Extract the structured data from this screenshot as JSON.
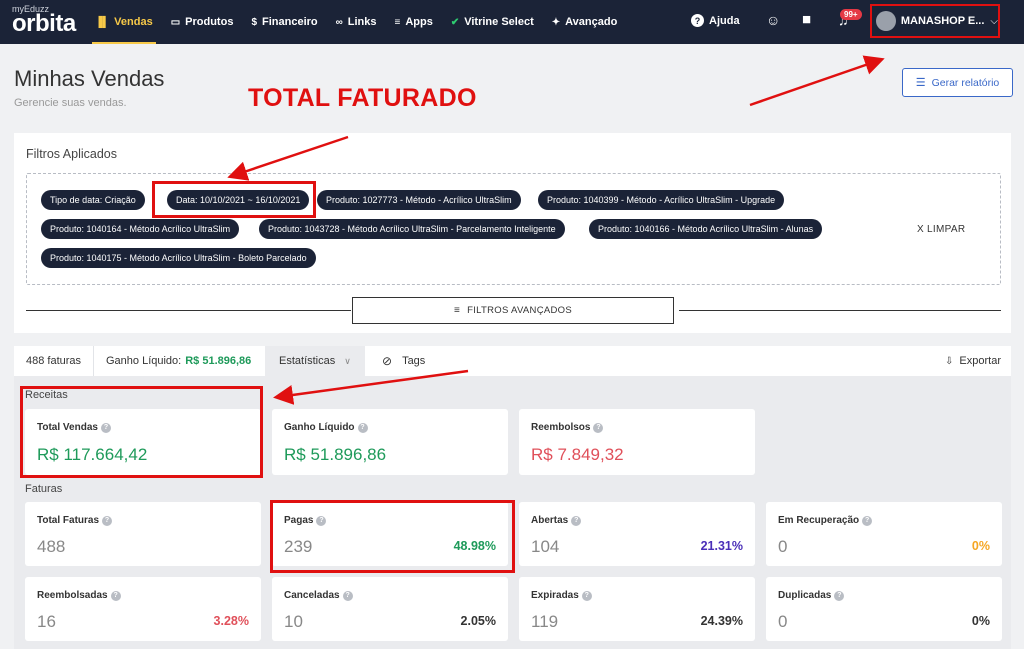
{
  "brand": {
    "small": "myEduzz",
    "big": "orbita"
  },
  "nav": {
    "items": [
      {
        "label": "Vendas",
        "icon": "bar-chart-icon",
        "active": true
      },
      {
        "label": "Produtos",
        "icon": "card-icon"
      },
      {
        "label": "Financeiro",
        "icon": "dollar-icon"
      },
      {
        "label": "Links",
        "icon": "link-icon"
      },
      {
        "label": "Apps",
        "icon": "grid-icon"
      },
      {
        "label": "Vitrine Select",
        "icon": "check-badge-icon"
      },
      {
        "label": "Avançado",
        "icon": "puzzle-icon"
      }
    ],
    "help_label": "Ajuda",
    "notifications_badge": "99+",
    "account_name": "MANASHOP E..."
  },
  "header": {
    "title": "Minhas Vendas",
    "subtitle": "Gerencie suas vendas.",
    "report_button": "Gerar relatório"
  },
  "annotation": {
    "text": "TOTAL FATURADO",
    "color": "#e01010"
  },
  "filters": {
    "title": "Filtros Aplicados",
    "chips": [
      "Tipo de data: Criação",
      "Data: 10/10/2021 ~ 16/10/2021",
      "Produto: 1027773 - Método - Acrílico UltraSlim",
      "Produto: 1040399 - Método - Acrílico UltraSlim - Upgrade",
      "Produto: 1040164 - Método Acrílico UltraSlim",
      "Produto: 1043728 - Método Acrílico UltraSlim - Parcelamento Inteligente",
      "Produto: 1040166 - Método Acrílico UltraSlim - Alunas",
      "Produto: 1040175 - Método Acrílico UltraSlim - Boleto Parcelado"
    ],
    "clear_label": "X LIMPAR",
    "advanced_label": "FILTROS AVANÇADOS"
  },
  "tabs": {
    "invoices": "488 faturas",
    "net_label": "Ganho Líquido:",
    "net_value": "R$ 51.896,86",
    "stats": "Estatísticas",
    "tags": "Tags",
    "export": "Exportar"
  },
  "revenue": {
    "label": "Receitas",
    "cards": [
      {
        "title": "Total Vendas",
        "value": "R$ 117.664,42"
      },
      {
        "title": "Ganho Líquido",
        "value": "R$ 51.896,86"
      },
      {
        "title": "Reembolsos",
        "value": "R$ 7.849,32"
      }
    ]
  },
  "invoices": {
    "label": "Faturas",
    "cards": [
      {
        "title": "Total Faturas",
        "value": "488",
        "pct": ""
      },
      {
        "title": "Pagas",
        "value": "239",
        "pct": "48.98%"
      },
      {
        "title": "Abertas",
        "value": "104",
        "pct": "21.31%"
      },
      {
        "title": "Em Recuperação",
        "value": "0",
        "pct": "0%"
      },
      {
        "title": "Reembolsadas",
        "value": "16",
        "pct": "3.28%"
      },
      {
        "title": "Canceladas",
        "value": "10",
        "pct": "2.05%"
      },
      {
        "title": "Expiradas",
        "value": "119",
        "pct": "24.39%"
      },
      {
        "title": "Duplicadas",
        "value": "0",
        "pct": "0%"
      }
    ]
  },
  "colors": {
    "nav_bg": "#1b2337",
    "active_nav": "#f7c948",
    "green": "#1e9a5a",
    "red": "#e0505a",
    "purple": "#4a2fb8",
    "orange": "#f5a623",
    "annotation": "#e01010"
  }
}
